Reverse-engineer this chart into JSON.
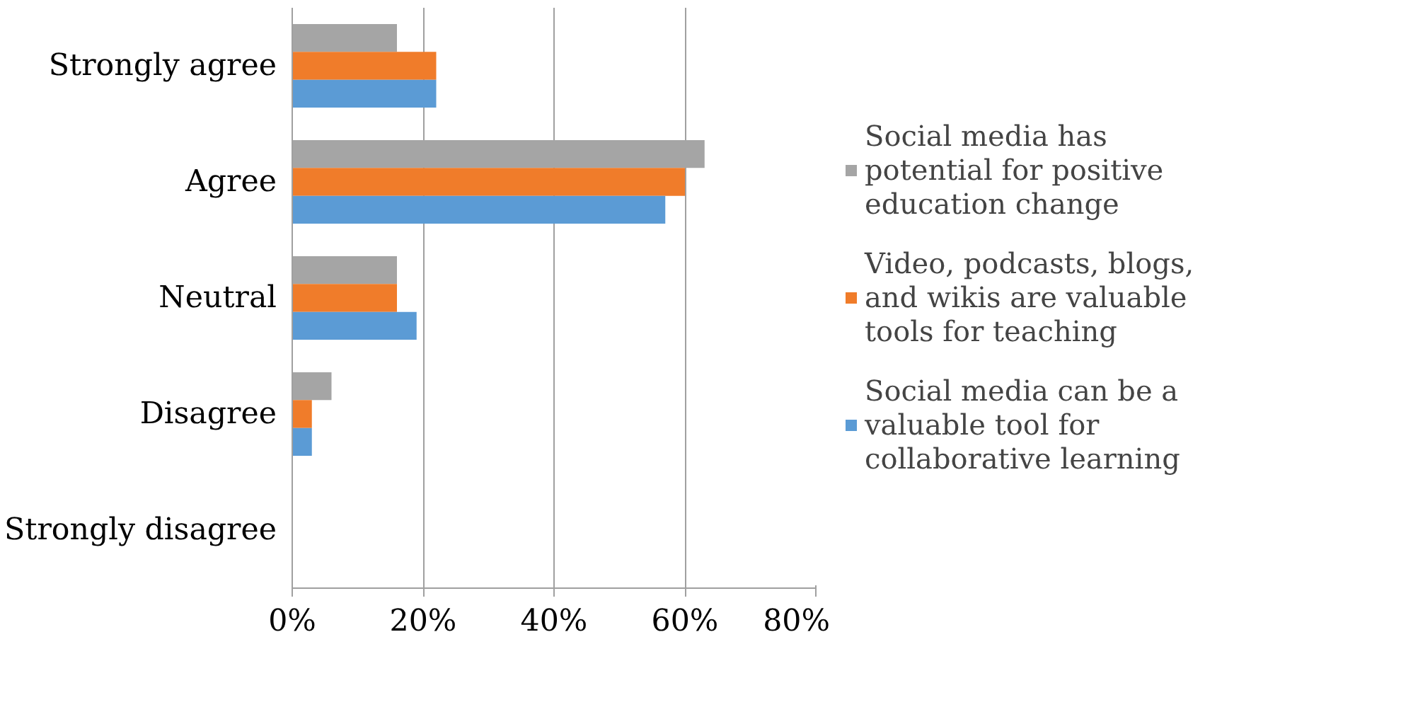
{
  "chart_data": {
    "type": "bar",
    "orientation": "horizontal",
    "categories": [
      "Strongly agree",
      "Agree",
      "Neutral",
      "Disagree",
      "Strongly disagree"
    ],
    "series": [
      {
        "name": "Social media has potential for positive education change",
        "color": "#a5a5a5",
        "values": [
          16,
          63,
          16,
          6,
          0
        ]
      },
      {
        "name": "Video, podcasts, blogs, and wikis are valuable tools for teaching",
        "color": "#f07c2a",
        "values": [
          22,
          60,
          16,
          3,
          0
        ]
      },
      {
        "name": "Social media can be a valuable tool for collaborative learning",
        "color": "#5b9bd5",
        "values": [
          22,
          57,
          19,
          3,
          0
        ]
      }
    ],
    "xlim": [
      0,
      80
    ],
    "xticks": [
      {
        "value": 0,
        "label": "0%"
      },
      {
        "value": 20,
        "label": "20%"
      },
      {
        "value": 40,
        "label": "40%"
      },
      {
        "value": 60,
        "label": "60%"
      },
      {
        "value": 80,
        "label": "80%"
      }
    ],
    "grid": "x",
    "legend": "right"
  }
}
